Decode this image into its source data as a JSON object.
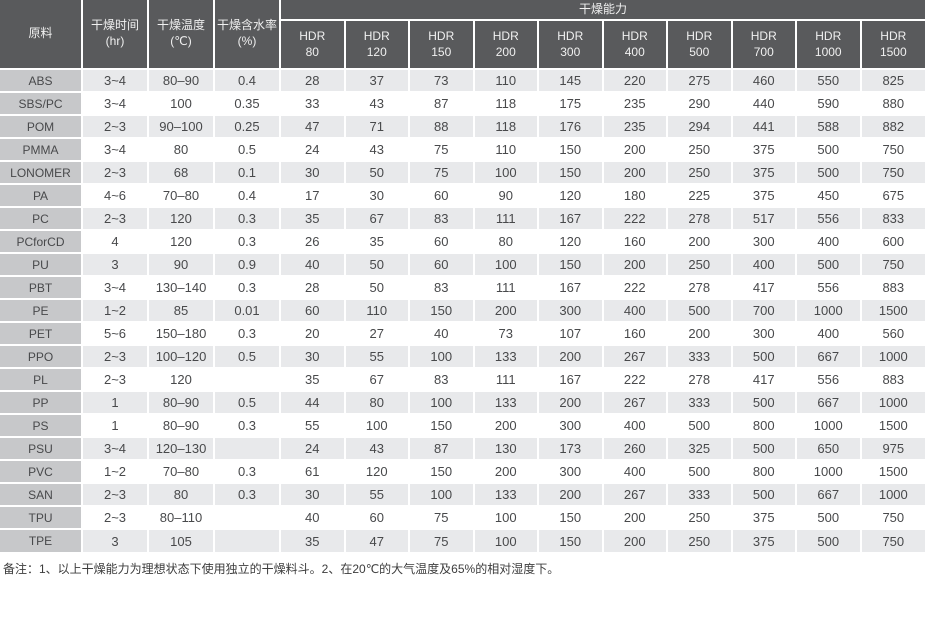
{
  "table": {
    "left_headers": [
      {
        "label": "原料",
        "sub": ""
      },
      {
        "label": "干燥时间",
        "sub": "(hr)"
      },
      {
        "label": "干燥温度",
        "sub": "(℃)"
      },
      {
        "label": "干燥含水率",
        "sub": "(%)"
      }
    ],
    "capacity_header": "干燥能力",
    "hdr_models": [
      {
        "line1": "HDR",
        "line2": "80"
      },
      {
        "line1": "HDR",
        "line2": "120"
      },
      {
        "line1": "HDR",
        "line2": "150"
      },
      {
        "line1": "HDR",
        "line2": "200"
      },
      {
        "line1": "HDR",
        "line2": "300"
      },
      {
        "line1": "HDR",
        "line2": "400"
      },
      {
        "line1": "HDR",
        "line2": "500"
      },
      {
        "line1": "HDR",
        "line2": "700"
      },
      {
        "line1": "HDR",
        "line2": "1000"
      },
      {
        "line1": "HDR",
        "line2": "1500"
      }
    ],
    "rows": [
      {
        "material": "ABS",
        "time": "3~4",
        "temp": "80–90",
        "moisture": "0.4",
        "capacities": [
          "28",
          "37",
          "73",
          "110",
          "145",
          "220",
          "275",
          "460",
          "550",
          "825"
        ]
      },
      {
        "material": "SBS/PC",
        "time": "3~4",
        "temp": "100",
        "moisture": "0.35",
        "capacities": [
          "33",
          "43",
          "87",
          "118",
          "175",
          "235",
          "290",
          "440",
          "590",
          "880"
        ]
      },
      {
        "material": "POM",
        "time": "2~3",
        "temp": "90–100",
        "moisture": "0.25",
        "capacities": [
          "47",
          "71",
          "88",
          "118",
          "176",
          "235",
          "294",
          "441",
          "588",
          "882"
        ]
      },
      {
        "material": "PMMA",
        "time": "3~4",
        "temp": "80",
        "moisture": "0.5",
        "capacities": [
          "24",
          "43",
          "75",
          "110",
          "150",
          "200",
          "250",
          "375",
          "500",
          "750"
        ]
      },
      {
        "material": "LONOMER",
        "time": "2~3",
        "temp": "68",
        "moisture": "0.1",
        "capacities": [
          "30",
          "50",
          "75",
          "100",
          "150",
          "200",
          "250",
          "375",
          "500",
          "750"
        ]
      },
      {
        "material": "PA",
        "time": "4~6",
        "temp": "70–80",
        "moisture": "0.4",
        "capacities": [
          "17",
          "30",
          "60",
          "90",
          "120",
          "180",
          "225",
          "375",
          "450",
          "675"
        ]
      },
      {
        "material": "PC",
        "time": "2~3",
        "temp": "120",
        "moisture": "0.3",
        "capacities": [
          "35",
          "67",
          "83",
          "111",
          "167",
          "222",
          "278",
          "517",
          "556",
          "833"
        ]
      },
      {
        "material": "PCforCD",
        "time": "4",
        "temp": "120",
        "moisture": "0.3",
        "capacities": [
          "26",
          "35",
          "60",
          "80",
          "120",
          "160",
          "200",
          "300",
          "400",
          "600"
        ]
      },
      {
        "material": "PU",
        "time": "3",
        "temp": "90",
        "moisture": "0.9",
        "capacities": [
          "40",
          "50",
          "60",
          "100",
          "150",
          "200",
          "250",
          "400",
          "500",
          "750"
        ]
      },
      {
        "material": "PBT",
        "time": "3~4",
        "temp": "130–140",
        "moisture": "0.3",
        "capacities": [
          "28",
          "50",
          "83",
          "111",
          "167",
          "222",
          "278",
          "417",
          "556",
          "883"
        ]
      },
      {
        "material": "PE",
        "time": "1~2",
        "temp": "85",
        "moisture": "0.01",
        "capacities": [
          "60",
          "110",
          "150",
          "200",
          "300",
          "400",
          "500",
          "700",
          "1000",
          "1500"
        ]
      },
      {
        "material": "PET",
        "time": "5~6",
        "temp": "150–180",
        "moisture": "0.3",
        "capacities": [
          "20",
          "27",
          "40",
          "73",
          "107",
          "160",
          "200",
          "300",
          "400",
          "560"
        ]
      },
      {
        "material": "PPO",
        "time": "2~3",
        "temp": "100–120",
        "moisture": "0.5",
        "capacities": [
          "30",
          "55",
          "100",
          "133",
          "200",
          "267",
          "333",
          "500",
          "667",
          "1000"
        ]
      },
      {
        "material": "PL",
        "time": "2~3",
        "temp": "120",
        "moisture": "",
        "capacities": [
          "35",
          "67",
          "83",
          "111",
          "167",
          "222",
          "278",
          "417",
          "556",
          "883"
        ]
      },
      {
        "material": "PP",
        "time": "1",
        "temp": "80–90",
        "moisture": "0.5",
        "capacities": [
          "44",
          "80",
          "100",
          "133",
          "200",
          "267",
          "333",
          "500",
          "667",
          "1000"
        ]
      },
      {
        "material": "PS",
        "time": "1",
        "temp": "80–90",
        "moisture": "0.3",
        "capacities": [
          "55",
          "100",
          "150",
          "200",
          "300",
          "400",
          "500",
          "800",
          "1000",
          "1500"
        ]
      },
      {
        "material": "PSU",
        "time": "3~4",
        "temp": "120–130",
        "moisture": "",
        "capacities": [
          "24",
          "43",
          "87",
          "130",
          "173",
          "260",
          "325",
          "500",
          "650",
          "975"
        ]
      },
      {
        "material": "PVC",
        "time": "1~2",
        "temp": "70–80",
        "moisture": "0.3",
        "capacities": [
          "61",
          "120",
          "150",
          "200",
          "300",
          "400",
          "500",
          "800",
          "1000",
          "1500"
        ]
      },
      {
        "material": "SAN",
        "time": "2~3",
        "temp": "80",
        "moisture": "0.3",
        "capacities": [
          "30",
          "55",
          "100",
          "133",
          "200",
          "267",
          "333",
          "500",
          "667",
          "1000"
        ]
      },
      {
        "material": "TPU",
        "time": "2~3",
        "temp": "80–110",
        "moisture": "",
        "capacities": [
          "40",
          "60",
          "75",
          "100",
          "150",
          "200",
          "250",
          "375",
          "500",
          "750"
        ]
      },
      {
        "material": "TPE",
        "time": "3",
        "temp": "105",
        "moisture": "",
        "capacities": [
          "35",
          "47",
          "75",
          "100",
          "150",
          "200",
          "250",
          "375",
          "500",
          "750"
        ]
      }
    ]
  },
  "footer": {
    "note": "备注：1、以上干燥能力为理想状态下使用独立的干燥料斗。2、在20℃的大气温度及65%的相对湿度下。"
  },
  "colors": {
    "header_bg": "#595a5c",
    "header_text": "#f0f0f0",
    "material_col_bg": "#c7c8ca",
    "stripe_row_bg": "#e8e9eb",
    "text": "#48494b"
  }
}
